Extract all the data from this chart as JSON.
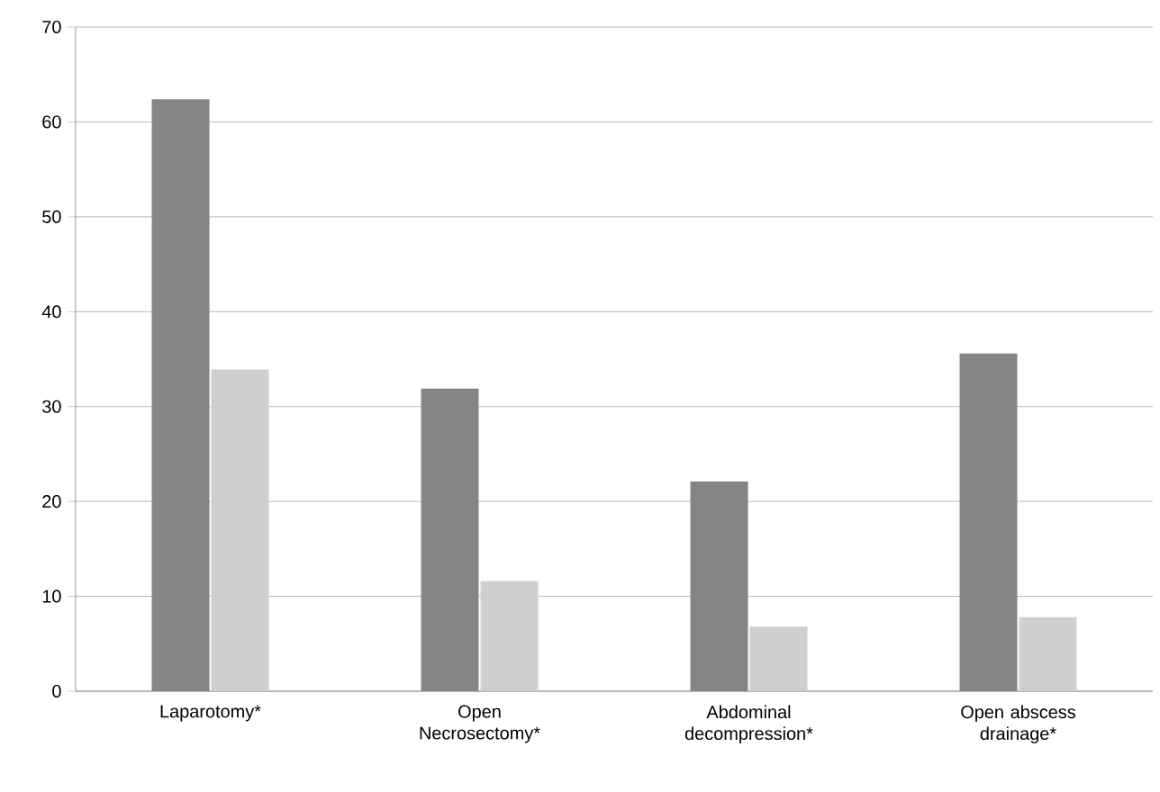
{
  "chart_data": {
    "type": "bar",
    "categories": [
      "Laparotomy*",
      "Open Necrosectomy*",
      "Abdominal decompression*",
      "Open abscess drainage*"
    ],
    "series": [
      {
        "color": "#858585",
        "values": [
          62.4,
          31.9,
          22.1,
          35.6
        ]
      },
      {
        "color": "#cfcfcf",
        "values": [
          33.9,
          11.6,
          6.8,
          7.8
        ]
      }
    ],
    "ylim": [
      0,
      70
    ],
    "yticks": [
      0,
      10,
      20,
      30,
      40,
      50,
      60,
      70
    ],
    "grid": "y"
  }
}
